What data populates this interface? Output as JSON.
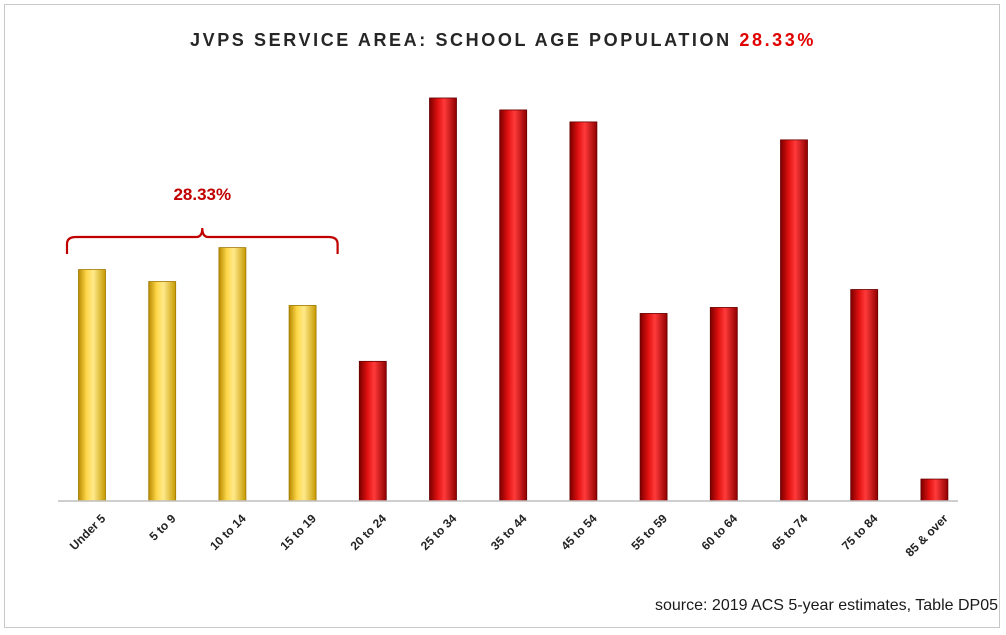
{
  "title": {
    "text": "JVPS SERVICE AREA: SCHOOL AGE POPULATION",
    "highlight": "28.33%"
  },
  "bracket_label": "28.33%",
  "source_note": "source: 2019 ACS 5-year estimates, Table DP05",
  "colors": {
    "school_age": "#f2c200",
    "other": "#c80000",
    "bracket": "#c00000"
  },
  "chart_data": {
    "type": "bar",
    "title": "JVPS SERVICE AREA: SCHOOL AGE POPULATION 28.33%",
    "xlabel": "",
    "ylabel": "",
    "categories": [
      "Under 5",
      "5 to 9",
      "10 to 14",
      "15 to 19",
      "20 to 24",
      "25 to 34",
      "35 to 44",
      "45 to 54",
      "55 to 59",
      "60 to 64",
      "65 to 74",
      "75 to 84",
      "85 & over"
    ],
    "values": [
      5.8,
      5.5,
      6.35,
      4.9,
      3.5,
      10.1,
      9.8,
      9.5,
      4.7,
      4.85,
      9.05,
      5.3,
      0.55
    ],
    "highlighted": [
      true,
      true,
      true,
      true,
      false,
      false,
      false,
      false,
      false,
      false,
      false,
      false,
      false
    ],
    "bracket": {
      "label": "28.33%",
      "from_category": "Under 5",
      "to_category": "15 to 19"
    },
    "ylim": [
      0,
      10.5
    ],
    "grid": false,
    "legend": "none",
    "source": "source: 2019 ACS 5-year estimates, Table DP05"
  }
}
